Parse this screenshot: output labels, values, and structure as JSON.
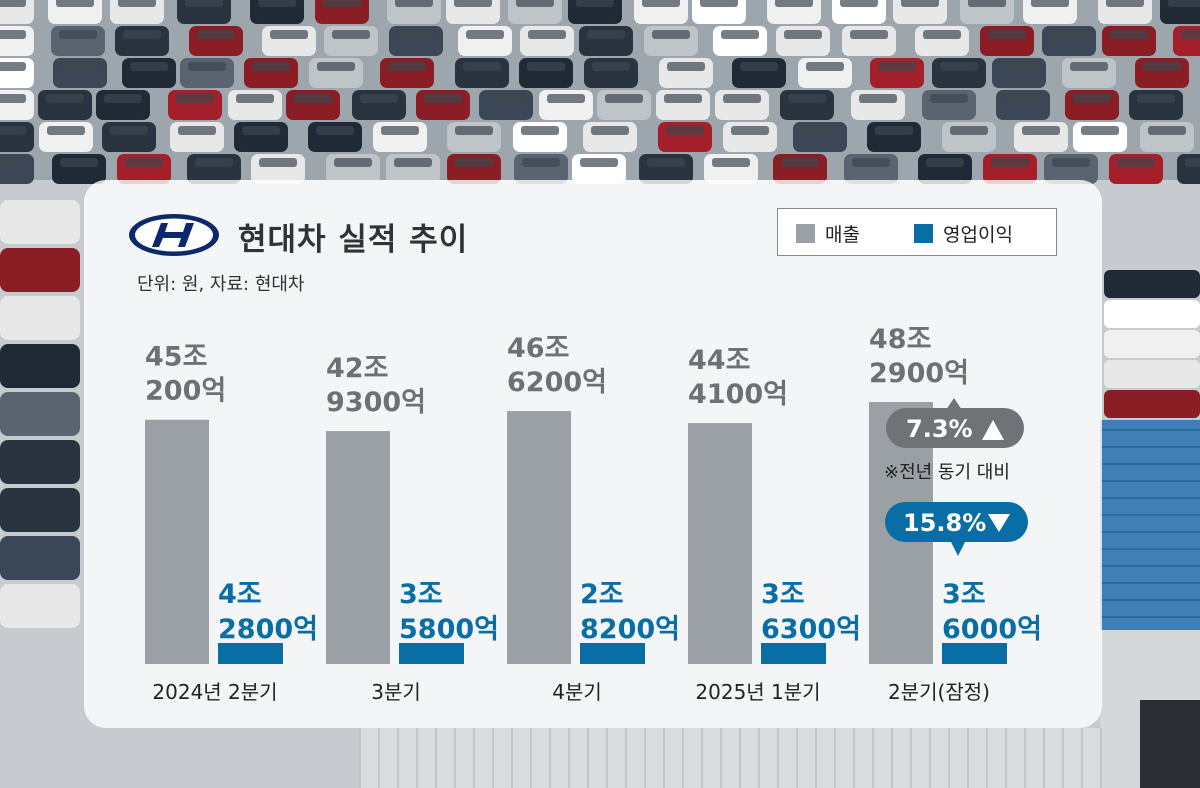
{
  "header": {
    "title": "현대차 실적 추이",
    "subtitle": "단위: 원, 자료: 현대차"
  },
  "legend": {
    "items": [
      {
        "label": "매출",
        "color": "#9aa0a6"
      },
      {
        "label": "영업이익",
        "color": "#0a6ea6"
      }
    ]
  },
  "colors": {
    "revenue": "#9aa0a6",
    "revenue_label": "#6c7176",
    "profit": "#0a6ea6",
    "badge_up": "#6f7378",
    "badge_down": "#0a6ea6"
  },
  "chart_data": {
    "type": "bar",
    "title": "현대차 실적 추이",
    "unit_note": "단위: 원, 자료: 현대차",
    "categories": [
      "2024년 2분기",
      "3분기",
      "4분기",
      "2025년 1분기",
      "2분기(잠정)"
    ],
    "series": [
      {
        "name": "매출",
        "values": [
          45.02,
          42.93,
          46.62,
          44.41,
          48.29
        ],
        "labels": [
          [
            "45조",
            "200억"
          ],
          [
            "42조",
            "9300억"
          ],
          [
            "46조",
            "6200억"
          ],
          [
            "44조",
            "4100억"
          ],
          [
            "48조",
            "2900억"
          ]
        ]
      },
      {
        "name": "영업이익",
        "values": [
          4.28,
          3.58,
          2.82,
          3.63,
          3.6
        ],
        "labels": [
          [
            "4조",
            "2800억"
          ],
          [
            "3조",
            "5800억"
          ],
          [
            "2조",
            "8200억"
          ],
          [
            "3조",
            "6300억"
          ],
          [
            "3조",
            "6000억"
          ]
        ]
      }
    ],
    "annotations": {
      "revenue_change": "7.3%",
      "profit_change": "15.8%",
      "note": "※전년 동기 대비"
    }
  }
}
